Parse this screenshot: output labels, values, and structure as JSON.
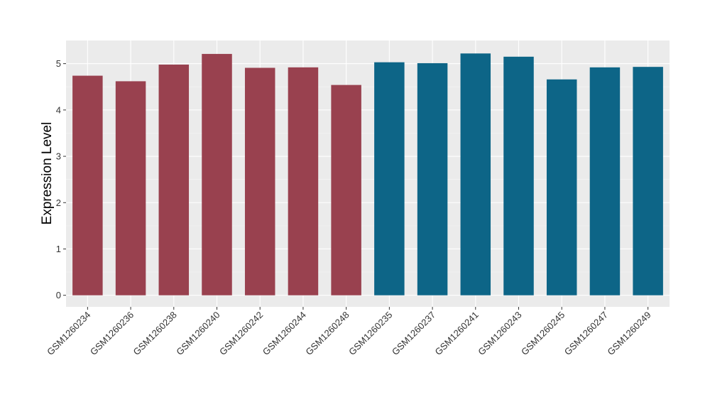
{
  "chart_data": {
    "type": "bar",
    "title": "",
    "xlabel": "",
    "ylabel": "Expression Level",
    "ylim": [
      -0.25,
      5.5
    ],
    "yticks": [
      0,
      1,
      2,
      3,
      4,
      5
    ],
    "grid": true,
    "legend": "none",
    "categories": [
      "GSM1260234",
      "GSM1260236",
      "GSM1260238",
      "GSM1260240",
      "GSM1260242",
      "GSM1260244",
      "GSM1260248",
      "GSM1260235",
      "GSM1260237",
      "GSM1260241",
      "GSM1260243",
      "GSM1260245",
      "GSM1260247",
      "GSM1260249"
    ],
    "values": [
      4.74,
      4.62,
      4.98,
      5.21,
      4.91,
      4.92,
      4.54,
      5.03,
      5.01,
      5.22,
      5.15,
      4.66,
      4.92,
      4.93
    ],
    "groups": [
      0,
      0,
      0,
      0,
      0,
      0,
      0,
      1,
      1,
      1,
      1,
      1,
      1,
      1
    ],
    "colors": {
      "group_0": "#99414f",
      "group_1": "#0d6587",
      "panel_background": "#ebebeb",
      "grid_major": "#ffffff",
      "grid_minor": "#f5f5f5"
    }
  }
}
